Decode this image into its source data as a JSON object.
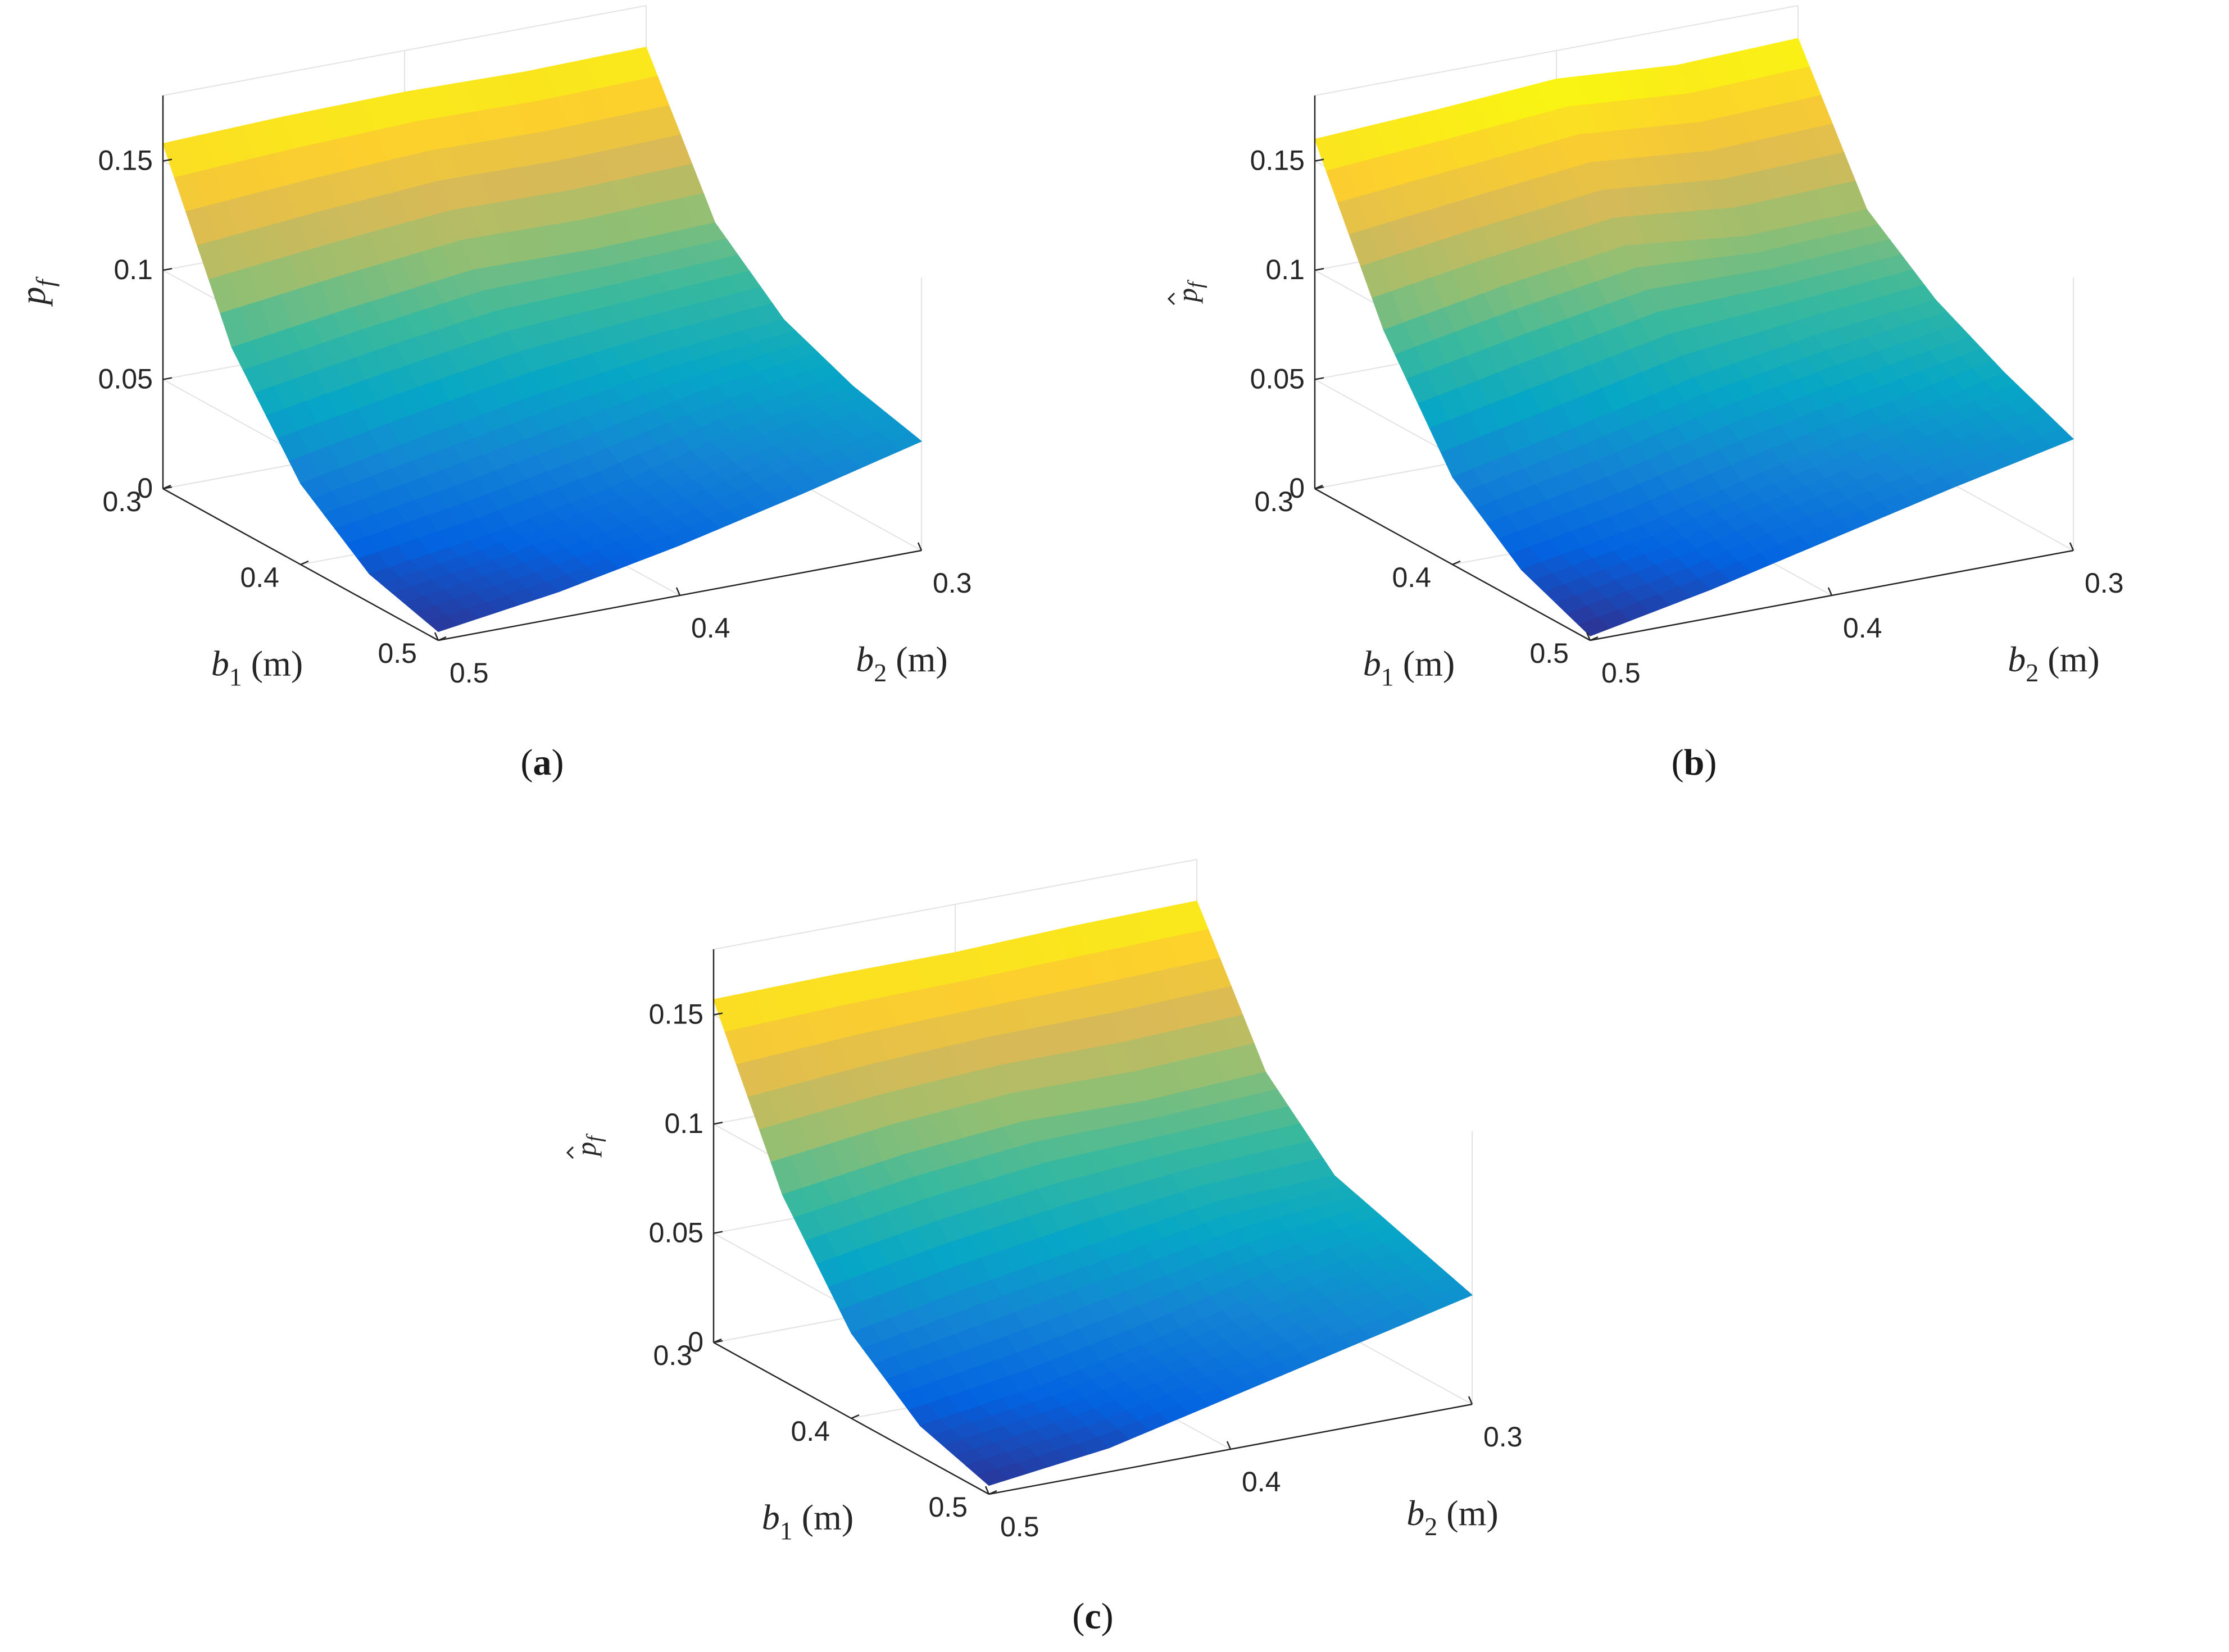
{
  "chart_data": [
    {
      "type": "surface",
      "panel_label": "a",
      "zlabel": "p",
      "zlabel_sub": "f",
      "zlabel_hat": false,
      "xlabel": "b",
      "xlabel_sub": "1",
      "xlabel_unit": " (m)",
      "ylabel": "b",
      "ylabel_sub": "2",
      "ylabel_unit": " (m)",
      "xticks": [
        "0.3",
        "0.4",
        "0.5"
      ],
      "yticks": [
        "0.5",
        "0.4",
        "0.3"
      ],
      "zticks": [
        "0",
        "0.05",
        "0.1",
        "0.15"
      ],
      "b1": [
        0.3,
        0.35,
        0.4,
        0.45,
        0.5
      ],
      "b2": [
        0.5,
        0.45,
        0.4,
        0.35,
        0.3
      ],
      "zlim": [
        0,
        0.18
      ],
      "grid": true,
      "colormap": "parula",
      "pf": [
        [
          0.158,
          0.16,
          0.161,
          0.16,
          0.161
        ],
        [
          0.082,
          0.09,
          0.097,
          0.096,
          0.098
        ],
        [
          0.037,
          0.048,
          0.058,
          0.066,
          0.071
        ],
        [
          0.013,
          0.021,
          0.032,
          0.047,
          0.058
        ],
        [
          0.004,
          0.012,
          0.023,
          0.036,
          0.05
        ]
      ]
    },
    {
      "type": "surface",
      "panel_label": "b",
      "zlabel": "p",
      "zlabel_sub": "f",
      "zlabel_hat": true,
      "xlabel": "b",
      "xlabel_sub": "1",
      "xlabel_unit": " (m)",
      "ylabel": "b",
      "ylabel_sub": "2",
      "ylabel_unit": " (m)",
      "xticks": [
        "0.3",
        "0.4",
        "0.5"
      ],
      "yticks": [
        "0.5",
        "0.4",
        "0.3"
      ],
      "zticks": [
        "0",
        "0.05",
        "0.1",
        "0.15"
      ],
      "b1": [
        0.3,
        0.35,
        0.4,
        0.45,
        0.5
      ],
      "b2": [
        0.5,
        0.45,
        0.4,
        0.35,
        0.3
      ],
      "zlim": [
        0,
        0.18
      ],
      "grid": true,
      "colormap": "parula",
      "pf": [
        [
          0.16,
          0.163,
          0.167,
          0.163,
          0.165
        ],
        [
          0.09,
          0.1,
          0.108,
          0.102,
          0.104
        ],
        [
          0.04,
          0.052,
          0.065,
          0.074,
          0.08
        ],
        [
          0.015,
          0.025,
          0.039,
          0.051,
          0.064
        ],
        [
          0.002,
          0.013,
          0.026,
          0.039,
          0.051
        ]
      ]
    },
    {
      "type": "surface",
      "panel_label": "c",
      "zlabel": "p",
      "zlabel_sub": "f",
      "zlabel_hat": true,
      "xlabel": "b",
      "xlabel_sub": "1",
      "xlabel_unit": " (m)",
      "ylabel": "b",
      "ylabel_sub": "2",
      "ylabel_unit": " (m)",
      "xticks": [
        "0.3",
        "0.4",
        "0.5"
      ],
      "yticks": [
        "0.5",
        "0.4",
        "0.3"
      ],
      "zticks": [
        "0",
        "0.05",
        "0.1",
        "0.15"
      ],
      "b1": [
        0.3,
        0.35,
        0.4,
        0.45,
        0.5
      ],
      "b2": [
        0.5,
        0.45,
        0.4,
        0.35,
        0.3
      ],
      "zlim": [
        0,
        0.18
      ],
      "grid": true,
      "colormap": "parula",
      "pf": [
        [
          0.157,
          0.158,
          0.158,
          0.16,
          0.161
        ],
        [
          0.085,
          0.093,
          0.098,
          0.097,
          0.1
        ],
        [
          0.039,
          0.05,
          0.059,
          0.068,
          0.07
        ],
        [
          0.014,
          0.022,
          0.034,
          0.048,
          0.06
        ],
        [
          0.004,
          0.011,
          0.024,
          0.037,
          0.05
        ]
      ]
    }
  ]
}
